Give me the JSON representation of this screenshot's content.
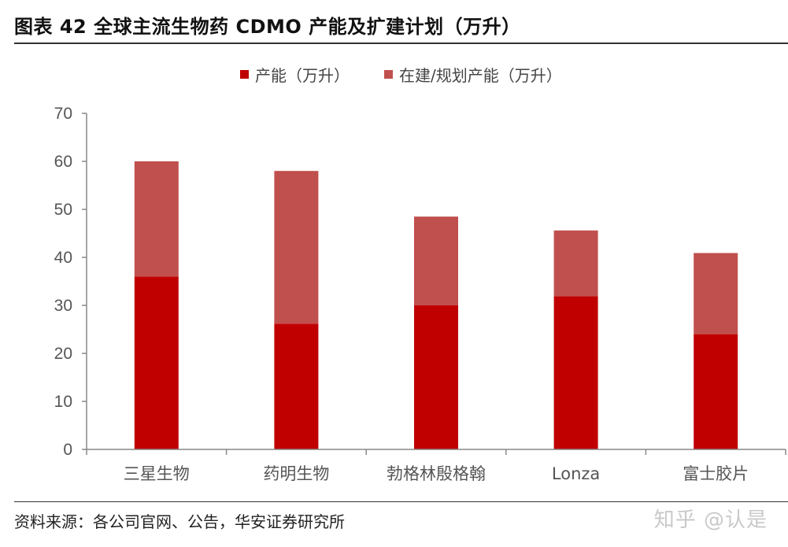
{
  "title": "图表 42  全球主流生物药 CDMO 产能及扩建计划（万升）",
  "source": "资料来源：各公司官网、公告，华安证券研究所",
  "watermark": "知乎 @认是",
  "colors": {
    "series_0": "#c00000",
    "series_1": "#c0504d",
    "axis": "#888888",
    "rule": "#333333"
  },
  "chart_data": {
    "type": "bar",
    "stacked": true,
    "categories": [
      "三星生物",
      "药明生物",
      "勃格林殷格翰",
      "Lonza",
      "富士胶片"
    ],
    "series": [
      {
        "name": "产能（万升）",
        "values": [
          36,
          26.2,
          30,
          31.9,
          24
        ]
      },
      {
        "name": "在建/规划产能（万升）",
        "values": [
          24,
          31.8,
          18.5,
          13.7,
          16.9
        ]
      }
    ],
    "yticks": [
      "0",
      "10",
      "20",
      "30",
      "40",
      "50",
      "60",
      "70"
    ],
    "ylim": [
      0,
      70
    ],
    "grid": false,
    "legend_position": "top"
  }
}
